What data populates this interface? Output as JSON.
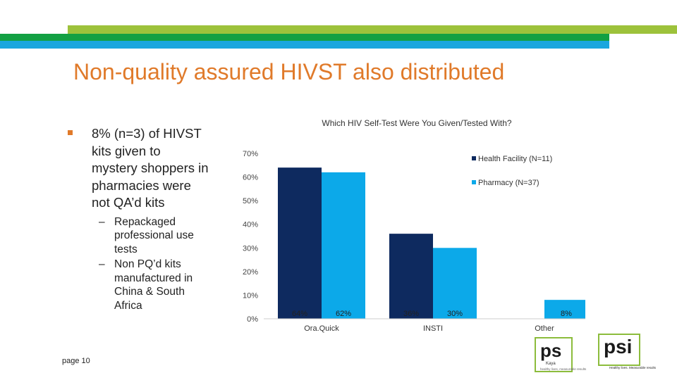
{
  "slide": {
    "title": "Non-quality assured HIVST also distributed",
    "page_label": "page 10"
  },
  "bullets": {
    "main": "8% (n=3) of HIVST kits given to mystery shoppers in pharmacies were not QA’d kits",
    "sub": [
      {
        "dash": "–",
        "text": "Repackaged professional use tests"
      },
      {
        "dash": "–",
        "text": "Non PQ’d kits manufactured in China & South Africa"
      }
    ]
  },
  "chart_data": {
    "type": "bar",
    "title": "Which HIV Self-Test Were You Given/Tested With?",
    "categories": [
      "Ora.Quick",
      "INSTI",
      "Other"
    ],
    "series": [
      {
        "name": "Health Facility (N=11)",
        "color": "#0e2a5f",
        "values": [
          64,
          36,
          0
        ],
        "labels": [
          "64%",
          "36%",
          ""
        ]
      },
      {
        "name": "Pharmacy (N=37)",
        "color": "#0ca9e9",
        "values": [
          62,
          30,
          8
        ],
        "labels": [
          "62%",
          "30%",
          "8%"
        ]
      }
    ],
    "y_ticks": [
      "0%",
      "10%",
      "20%",
      "30%",
      "40%",
      "50%",
      "60%",
      "70%"
    ],
    "ylim": [
      0,
      70
    ],
    "xlabel": "",
    "ylabel": "",
    "legend_position": "right"
  },
  "logos": {
    "ps_kaya": {
      "text": "ps",
      "sub": "Kaya",
      "tag": "healthy lives, measurable results"
    },
    "psi": {
      "text": "psi",
      "tag": "Healthy lives. Measurable results"
    }
  },
  "colors": {
    "title": "#e07a2a",
    "bar_dark": "#0e2a5f",
    "bar_light": "#0ca9e9"
  }
}
